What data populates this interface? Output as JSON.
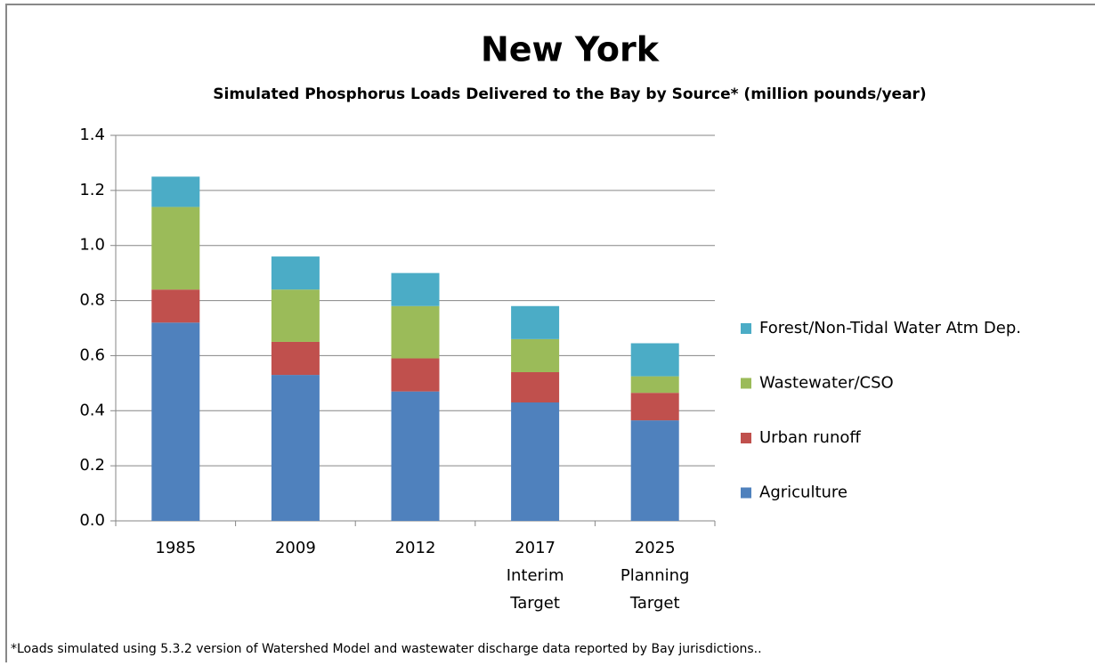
{
  "chart_data": {
    "type": "stacked_bar",
    "title": "New York",
    "subtitle": "Simulated Phosphorus Loads Delivered to the Bay by Source* (million pounds/year)",
    "note": "*Loads simulated using 5.3.2 version of Watershed Model and wastewater discharge data reported by Bay jurisdictions..",
    "categories": [
      [
        "1985"
      ],
      [
        "2009"
      ],
      [
        "2012"
      ],
      [
        "2017",
        "Interim",
        "Target"
      ],
      [
        "2025",
        "Planning",
        "Target"
      ]
    ],
    "series": [
      {
        "name": "Agriculture",
        "color": "#4f81bd",
        "values": [
          0.72,
          0.53,
          0.47,
          0.43,
          0.365
        ]
      },
      {
        "name": "Urban runoff",
        "color": "#c0504d",
        "values": [
          0.12,
          0.12,
          0.12,
          0.11,
          0.1
        ]
      },
      {
        "name": "Wastewater/CSO",
        "color": "#9bbb59",
        "values": [
          0.3,
          0.19,
          0.19,
          0.12,
          0.06
        ]
      },
      {
        "name": "Forest/Non-Tidal Water Atm Dep.",
        "color": "#4bacc6",
        "values": [
          0.11,
          0.12,
          0.12,
          0.12,
          0.12
        ]
      }
    ],
    "ylim": [
      0,
      1.4
    ],
    "yticks": [
      {
        "value": 0,
        "label": "0.0"
      },
      0.2,
      0.4,
      0.6,
      0.8,
      {
        "value": 1,
        "label": "1.0"
      },
      1.2,
      1.4
    ],
    "grid": true,
    "legend": "right"
  }
}
